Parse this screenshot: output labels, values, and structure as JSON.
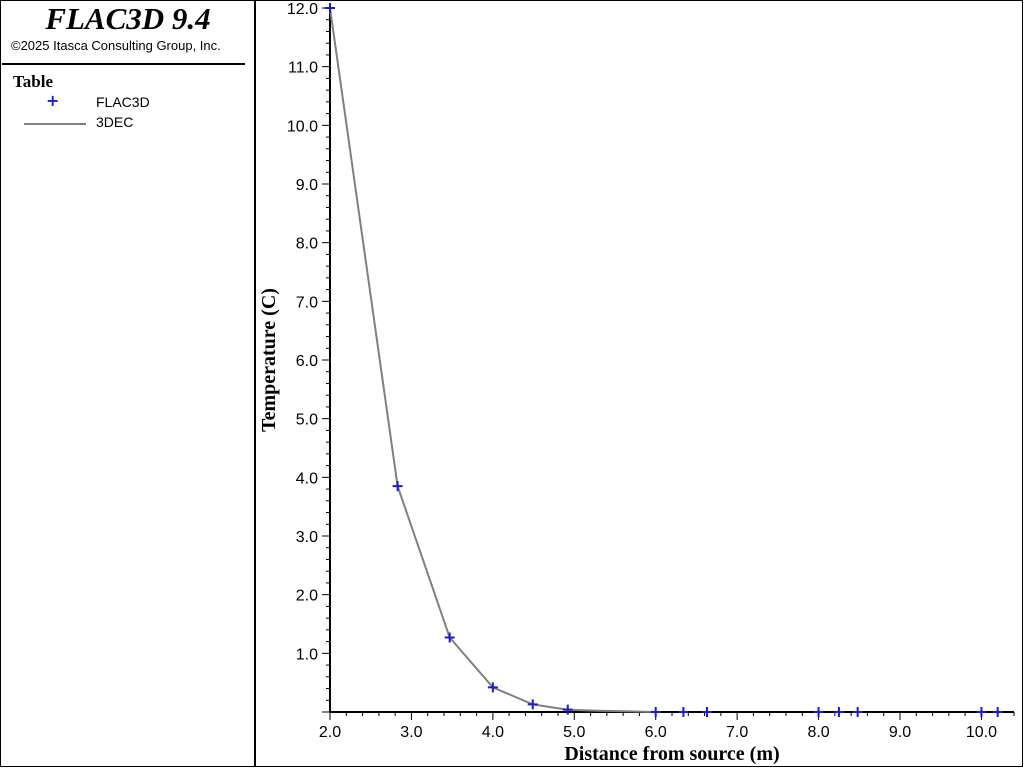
{
  "header": {
    "title": "FLAC3D 9.4",
    "copyright": "©2025 Itasca Consulting Group, Inc."
  },
  "legend": {
    "title": "Table",
    "items": [
      {
        "label": "FLAC3D",
        "symbol": "plus",
        "color": "#1a1ad4"
      },
      {
        "label": "3DEC",
        "symbol": "line",
        "color": "#808080"
      }
    ]
  },
  "chart_data": {
    "type": "line",
    "title": "",
    "xlabel": "Distance from source (m)",
    "ylabel": "Temperature (C)",
    "xlim": [
      2.0,
      10.4
    ],
    "ylim": [
      0.0,
      12.0
    ],
    "xticks": [
      "2.0",
      "3.0",
      "4.0",
      "5.0",
      "6.0",
      "7.0",
      "8.0",
      "9.0",
      "10.0"
    ],
    "yticks": [
      "1.0",
      "2.0",
      "3.0",
      "4.0",
      "5.0",
      "6.0",
      "7.0",
      "8.0",
      "9.0",
      "10.0",
      "11.0",
      "12.0"
    ],
    "grid": false,
    "legend_position": "left-panel",
    "series": [
      {
        "name": "FLAC3D",
        "style": "markers",
        "color": "#1a1ad4",
        "x": [
          2.0,
          2.83,
          3.47,
          4.0,
          4.49,
          4.92,
          6.0,
          6.34,
          6.63,
          8.0,
          8.25,
          8.48,
          10.0,
          10.2
        ],
        "y": [
          12.0,
          3.85,
          1.27,
          0.42,
          0.13,
          0.04,
          0.0,
          0.0,
          0.0,
          0.0,
          0.0,
          0.0,
          0.0,
          0.0
        ]
      },
      {
        "name": "3DEC",
        "style": "line",
        "color": "#808080",
        "x": [
          2.0,
          2.83,
          3.47,
          4.0,
          4.49,
          4.92,
          5.3,
          5.7,
          6.0
        ],
        "y": [
          12.0,
          3.85,
          1.27,
          0.42,
          0.13,
          0.04,
          0.02,
          0.01,
          0.0
        ]
      }
    ]
  }
}
